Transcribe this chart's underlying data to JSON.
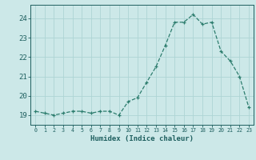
{
  "x": [
    0,
    1,
    2,
    3,
    4,
    5,
    6,
    7,
    8,
    9,
    10,
    11,
    12,
    13,
    14,
    15,
    16,
    17,
    18,
    19,
    20,
    21,
    22,
    23
  ],
  "y": [
    19.2,
    19.1,
    19.0,
    19.1,
    19.2,
    19.2,
    19.1,
    19.2,
    19.2,
    19.0,
    19.7,
    19.9,
    20.7,
    21.5,
    22.6,
    23.8,
    23.8,
    24.2,
    23.7,
    23.8,
    22.3,
    21.8,
    21.0,
    19.4
  ],
  "xlabel": "Humidex (Indice chaleur)",
  "xlim": [
    -0.5,
    23.5
  ],
  "ylim": [
    18.5,
    24.7
  ],
  "yticks": [
    19,
    20,
    21,
    22,
    23,
    24
  ],
  "xticks": [
    0,
    1,
    2,
    3,
    4,
    5,
    6,
    7,
    8,
    9,
    10,
    11,
    12,
    13,
    14,
    15,
    16,
    17,
    18,
    19,
    20,
    21,
    22,
    23
  ],
  "line_color": "#2d7d6e",
  "marker_color": "#2d7d6e",
  "bg_color": "#cce8e8",
  "grid_color": "#aed4d4",
  "tick_label_color": "#1e5f5f",
  "xlabel_color": "#1e5f5f"
}
